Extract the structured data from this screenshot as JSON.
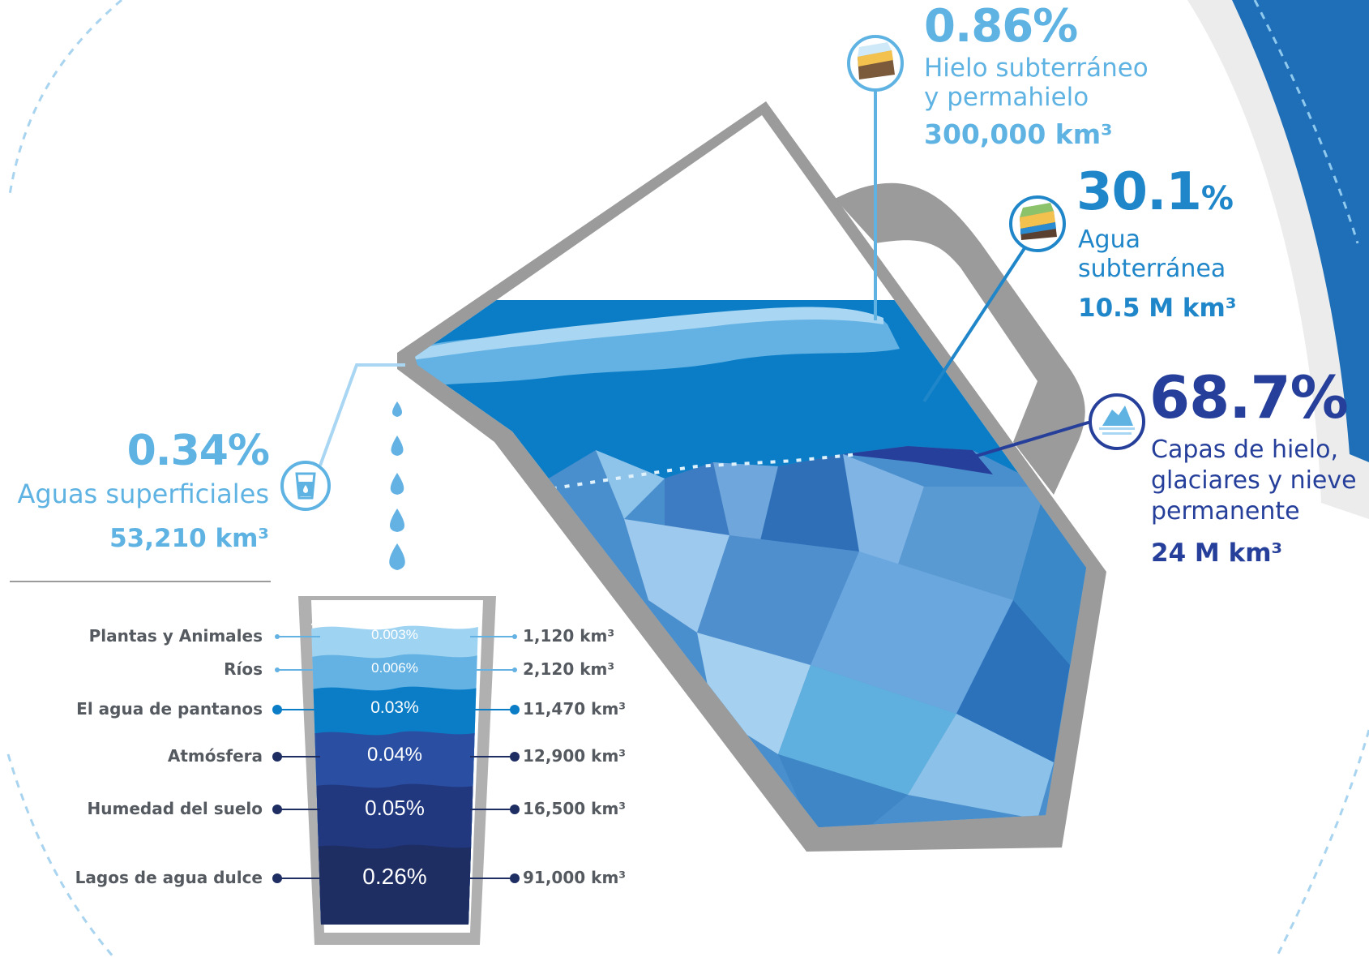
{
  "colors": {
    "light": "#5fb3e3",
    "medium": "#1f86c9",
    "dark": "#253f9a",
    "label_grey": "#555a60",
    "pitcher_grey": "#9b9b9b"
  },
  "callouts": {
    "ground_ice": {
      "percent": "0.86%",
      "title_line1": "Hielo subterráneo",
      "title_line2": "y permahielo",
      "volume": "300,000 km³",
      "icon": "permafrost-layers-icon"
    },
    "groundwater": {
      "percent": "30.1",
      "percent_sign": "%",
      "title_line1": "Agua",
      "title_line2": "subterránea",
      "volume": "10.5 M km³",
      "icon": "groundwater-layers-icon"
    },
    "ice_caps": {
      "percent": "68.7%",
      "title_line1": "Capas de hielo,",
      "title_line2": "glaciares y nieve",
      "title_line3": "permanente",
      "volume": "24 M km³",
      "icon": "iceberg-icon"
    },
    "surface_water": {
      "percent": "0.34%",
      "title": "Aguas superficiales",
      "volume": "53,210 km³",
      "icon": "water-glass-icon"
    }
  },
  "glass_layers": [
    {
      "label": "Plantas y Animales",
      "percent": "0.003%",
      "volume": "1,120 km³",
      "color": "#9fd3f2"
    },
    {
      "label": "Ríos",
      "percent": "0.006%",
      "volume": "2,120 km³",
      "color": "#63b2e3"
    },
    {
      "label": "El agua de pantanos",
      "percent": "0.03%",
      "volume": "11,470 km³",
      "color": "#0a7dc6"
    },
    {
      "label": "Atmósfera",
      "percent": "0.04%",
      "volume": "12,900 km³",
      "color": "#2a4ea1"
    },
    {
      "label": "Humedad del suelo",
      "percent": "0.05%",
      "volume": "16,500 km³",
      "color": "#21387f"
    },
    {
      "label": "Lagos de agua dulce",
      "percent": "0.26%",
      "volume": "91,000 km³",
      "color": "#1e2e63"
    }
  ]
}
